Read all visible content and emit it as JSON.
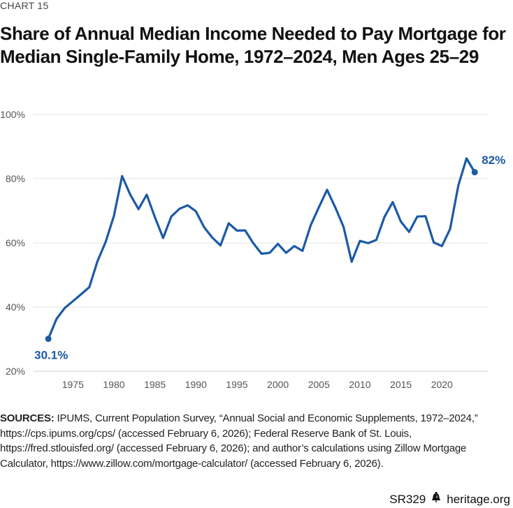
{
  "chart_label": "CHART 15",
  "title": "Share of Annual Median Income Needed to Pay Mortgage for Median Single-Family Home, 1972–2024, Men Ages 25–29",
  "sources": {
    "label": "SOURCES:",
    "text": "IPUMS, Current Population Survey, “Annual Social and Economic Supplements, 1972–2024,” https://cps.ipums.org/cps/ (accessed February 6, 2026); Federal Reserve Bank of St. Louis, https://fred.stlouisfed.org/ (accessed February 6, 2026); and author’s calculations using Zillow Mortgage Calculator, https://www.zillow.com/mortgage-calculator/ (accessed February 6, 2026)."
  },
  "footer": {
    "report_id": "SR329",
    "site": "heritage.org",
    "logo_icon": "liberty-bell-icon"
  },
  "colors": {
    "line": "#1b5aa6",
    "grid": "#e3e3e3",
    "axis_text": "#555555"
  },
  "chart_data": {
    "type": "line",
    "title": "Share of Annual Median Income Needed to Pay Mortgage for Median Single-Family Home, 1972–2024, Men Ages 25–29",
    "xlabel": "",
    "ylabel": "",
    "xlim": [
      1970.2,
      1972,
      2025
    ],
    "ylim": [
      20,
      100
    ],
    "x_ticks": [
      1975,
      1980,
      1985,
      1990,
      1995,
      2000,
      2005,
      2010,
      2015,
      2020
    ],
    "y_ticks": [
      20,
      40,
      60,
      80,
      100
    ],
    "y_tick_labels": [
      "20%",
      "40%",
      "60%",
      "80%",
      "100%"
    ],
    "grid": true,
    "legend": "none",
    "series": [
      {
        "x": [
          1972,
          1973,
          1974,
          1975,
          1976,
          1977,
          1978,
          1979,
          1980,
          1981,
          1982,
          1983,
          1984,
          1985,
          1986,
          1987,
          1988,
          1989,
          1990,
          1991,
          1992,
          1993,
          1994,
          1995,
          1996,
          1997,
          1998,
          1999,
          2000,
          2001,
          2002,
          2003,
          2004,
          2005,
          2006,
          2007,
          2008,
          2009,
          2010,
          2011,
          2012,
          2013,
          2014,
          2015,
          2016,
          2017,
          2018,
          2019,
          2020,
          2021,
          2022,
          2023,
          2024
        ],
        "y": [
          30.1,
          36.3,
          39.7,
          41.8,
          44.0,
          46.2,
          54.3,
          60.3,
          68.4,
          80.8,
          75.0,
          70.5,
          75.0,
          68.0,
          61.5,
          68.2,
          70.6,
          71.7,
          69.8,
          64.9,
          61.6,
          59.2,
          66.1,
          63.8,
          63.9,
          59.9,
          56.6,
          56.9,
          59.7,
          56.9,
          59.0,
          57.5,
          65.5,
          71.1,
          76.5,
          71.0,
          65.0,
          54.1,
          60.6,
          59.9,
          60.9,
          68.1,
          72.7,
          66.6,
          63.4,
          68.2,
          68.3,
          60.1,
          59.0,
          64.3,
          77.9,
          86.3,
          82.0
        ]
      }
    ],
    "annotations": [
      {
        "x": 1972,
        "y": 30.1,
        "text": "30.1%"
      },
      {
        "x": 2024,
        "y": 82.0,
        "text": "82%"
      }
    ]
  }
}
